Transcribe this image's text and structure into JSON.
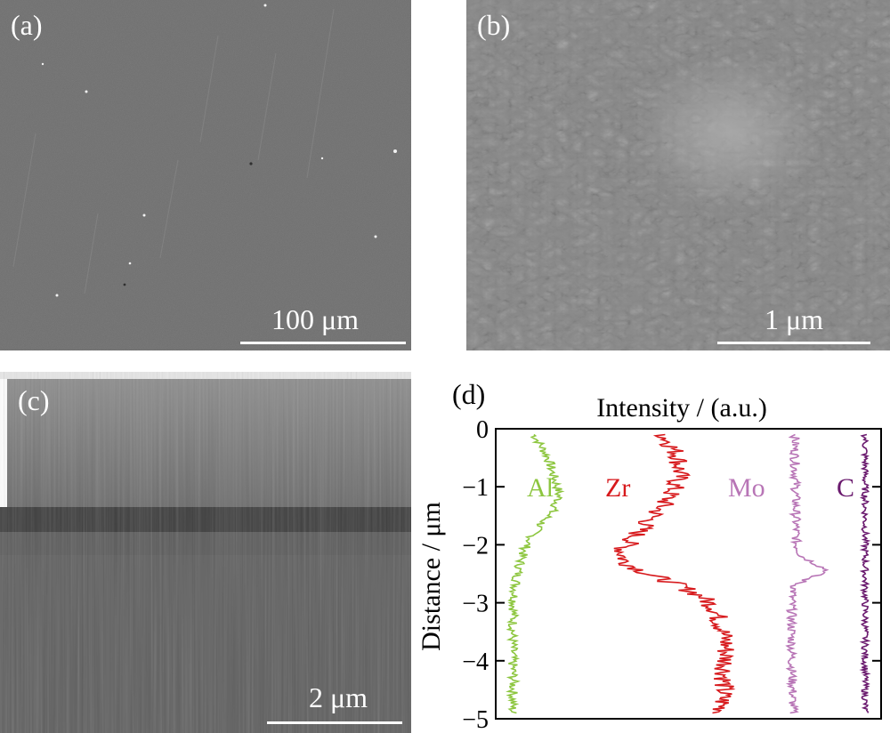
{
  "panels": {
    "a": {
      "label": "(a)",
      "scale_bar": "100 μm"
    },
    "b": {
      "label": "(b)",
      "scale_bar": "1 μm"
    },
    "c": {
      "label": "(c)",
      "scale_bar": "2 μm"
    },
    "d": {
      "label": "(d)"
    }
  },
  "chart_data": {
    "type": "line",
    "title": "Intensity / (a.u.)",
    "ylabel": "Distance / μm",
    "ylim": [
      -5,
      0
    ],
    "yticks": [
      "0",
      "−1",
      "−2",
      "−3",
      "−4",
      "−5"
    ],
    "ytick_values": [
      0,
      -1,
      -2,
      -3,
      -4,
      -5
    ],
    "series": [
      {
        "name": "Al",
        "color": "#8dc63f",
        "points": [
          [
            0.35,
            -0.1
          ],
          [
            0.45,
            -0.3
          ],
          [
            0.55,
            -0.5
          ],
          [
            0.62,
            -0.8
          ],
          [
            0.68,
            -1.0
          ],
          [
            0.7,
            -1.2
          ],
          [
            0.62,
            -1.4
          ],
          [
            0.48,
            -1.6
          ],
          [
            0.35,
            -1.8
          ],
          [
            0.25,
            -2.0
          ],
          [
            0.18,
            -2.2
          ],
          [
            0.12,
            -2.5
          ],
          [
            0.08,
            -2.8
          ],
          [
            0.06,
            -3.2
          ],
          [
            0.05,
            -3.6
          ],
          [
            0.05,
            -4.0
          ],
          [
            0.06,
            -4.4
          ],
          [
            0.05,
            -4.7
          ],
          [
            0.05,
            -4.9
          ]
        ]
      },
      {
        "name": "Zr",
        "color": "#d7191c",
        "points": [
          [
            0.45,
            -0.1
          ],
          [
            0.5,
            -0.3
          ],
          [
            0.55,
            -0.5
          ],
          [
            0.55,
            -0.8
          ],
          [
            0.52,
            -1.0
          ],
          [
            0.45,
            -1.3
          ],
          [
            0.35,
            -1.6
          ],
          [
            0.25,
            -1.9
          ],
          [
            0.18,
            -2.1
          ],
          [
            0.2,
            -2.3
          ],
          [
            0.35,
            -2.5
          ],
          [
            0.55,
            -2.7
          ],
          [
            0.7,
            -2.9
          ],
          [
            0.78,
            -3.1
          ],
          [
            0.82,
            -3.4
          ],
          [
            0.85,
            -3.7
          ],
          [
            0.85,
            -4.0
          ],
          [
            0.84,
            -4.3
          ],
          [
            0.83,
            -4.6
          ],
          [
            0.82,
            -4.9
          ]
        ]
      },
      {
        "name": "Mo",
        "color": "#b875b6",
        "points": [
          [
            0.35,
            -0.1
          ],
          [
            0.35,
            -0.5
          ],
          [
            0.36,
            -1.0
          ],
          [
            0.36,
            -1.5
          ],
          [
            0.37,
            -2.0
          ],
          [
            0.45,
            -2.2
          ],
          [
            0.7,
            -2.35
          ],
          [
            0.85,
            -2.45
          ],
          [
            0.6,
            -2.55
          ],
          [
            0.35,
            -2.7
          ],
          [
            0.3,
            -2.9
          ],
          [
            0.3,
            -3.3
          ],
          [
            0.3,
            -3.8
          ],
          [
            0.31,
            -4.3
          ],
          [
            0.32,
            -4.9
          ]
        ]
      },
      {
        "name": "C",
        "color": "#6a1a6e",
        "points": [
          [
            0.5,
            -0.1
          ],
          [
            0.5,
            -0.5
          ],
          [
            0.5,
            -1.0
          ],
          [
            0.5,
            -1.5
          ],
          [
            0.5,
            -2.0
          ],
          [
            0.5,
            -2.5
          ],
          [
            0.5,
            -3.0
          ],
          [
            0.5,
            -3.5
          ],
          [
            0.5,
            -4.0
          ],
          [
            0.5,
            -4.5
          ],
          [
            0.5,
            -4.9
          ]
        ]
      }
    ]
  }
}
